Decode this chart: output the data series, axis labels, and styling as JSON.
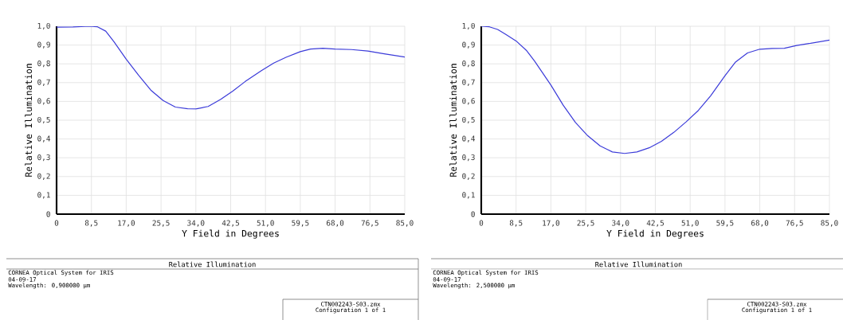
{
  "chart_data": [
    {
      "type": "line",
      "title": "Relative Illumination",
      "xlabel": "Y Field in Degrees",
      "ylabel": "Relative Illumination",
      "annotations": [
        "CORNEA Optical System for IRIS",
        "04-09-17",
        "Wavelength: 0,900000 µm",
        "CTN002243-S03.zmx",
        "Configuration 1 of 1"
      ],
      "xlim": [
        0,
        85
      ],
      "ylim": [
        0,
        1
      ],
      "xticks": [
        0,
        {
          "value": 8.5,
          "label": "8,5"
        },
        {
          "value": 17,
          "label": "17,0"
        },
        {
          "value": 25.5,
          "label": "25,5"
        },
        {
          "value": 34,
          "label": "34,0"
        },
        {
          "value": 42.5,
          "label": "42,5"
        },
        {
          "value": 51,
          "label": "51,0"
        },
        {
          "value": 59.5,
          "label": "59,5"
        },
        {
          "value": 68,
          "label": "68,0"
        },
        {
          "value": 76.5,
          "label": "76,5"
        },
        {
          "value": 85,
          "label": "85,0"
        }
      ],
      "yticks": [
        0,
        {
          "value": 0.1,
          "label": "0,1"
        },
        {
          "value": 0.2,
          "label": "0,2"
        },
        {
          "value": 0.3,
          "label": "0,3"
        },
        {
          "value": 0.4,
          "label": "0,4"
        },
        {
          "value": 0.5,
          "label": "0,5"
        },
        {
          "value": 0.6,
          "label": "0,6"
        },
        {
          "value": 0.7,
          "label": "0,7"
        },
        {
          "value": 0.8,
          "label": "0,8"
        },
        {
          "value": 0.9,
          "label": "0,9"
        },
        {
          "value": 1,
          "label": "1,0"
        }
      ],
      "grid": true,
      "marker": "none",
      "line_style": "solid",
      "series": [
        {
          "color": "#3b3bd9",
          "x": [
            0,
            4,
            8,
            10,
            12,
            14,
            17,
            20,
            23,
            26,
            29,
            32,
            34,
            37,
            40,
            43,
            46,
            50,
            53,
            56,
            59.5,
            62,
            65,
            68,
            72,
            76,
            80,
            85
          ],
          "values": [
            0.995,
            0.996,
            1.0,
            0.997,
            0.974,
            0.918,
            0.825,
            0.74,
            0.66,
            0.605,
            0.57,
            0.561,
            0.56,
            0.573,
            0.61,
            0.655,
            0.705,
            0.764,
            0.804,
            0.835,
            0.865,
            0.879,
            0.883,
            0.879,
            0.876,
            0.868,
            0.853,
            0.836
          ]
        }
      ]
    },
    {
      "type": "line",
      "title": "Relative Illumination",
      "xlabel": "Y Field in Degrees",
      "ylabel": "Relative Illumination",
      "annotations": [
        "CORNEA Optical System for IRIS",
        "04-09-17",
        "Wavelength: 2,500000 µm",
        "CTN002243-S03.zmx",
        "Configuration 1 of 1"
      ],
      "xlim": [
        0,
        85
      ],
      "ylim": [
        0,
        1
      ],
      "xticks": [
        0,
        {
          "value": 8.5,
          "label": "8,5"
        },
        {
          "value": 17,
          "label": "17,0"
        },
        {
          "value": 25.5,
          "label": "25,5"
        },
        {
          "value": 34,
          "label": "34,0"
        },
        {
          "value": 42.5,
          "label": "42,5"
        },
        {
          "value": 51,
          "label": "51,0"
        },
        {
          "value": 59.5,
          "label": "59,5"
        },
        {
          "value": 68,
          "label": "68,0"
        },
        {
          "value": 76.5,
          "label": "76,5"
        },
        {
          "value": 85,
          "label": "85,0"
        }
      ],
      "yticks": [
        0,
        {
          "value": 0.1,
          "label": "0,1"
        },
        {
          "value": 0.2,
          "label": "0,2"
        },
        {
          "value": 0.3,
          "label": "0,3"
        },
        {
          "value": 0.4,
          "label": "0,4"
        },
        {
          "value": 0.5,
          "label": "0,5"
        },
        {
          "value": 0.6,
          "label": "0,6"
        },
        {
          "value": 0.7,
          "label": "0,7"
        },
        {
          "value": 0.8,
          "label": "0,8"
        },
        {
          "value": 0.9,
          "label": "0,9"
        },
        {
          "value": 1,
          "label": "1,0"
        }
      ],
      "grid": true,
      "marker": "none",
      "line_style": "solid",
      "series": [
        {
          "color": "#3b3bd9",
          "x": [
            0,
            2,
            4,
            6,
            8.5,
            11,
            13,
            15,
            17,
            20,
            23,
            26,
            29,
            32,
            35,
            38,
            41,
            44,
            47,
            50,
            53,
            56,
            59.5,
            62,
            65,
            68,
            71,
            74,
            77,
            80,
            85
          ],
          "values": [
            1.0,
            0.997,
            0.983,
            0.957,
            0.922,
            0.872,
            0.815,
            0.751,
            0.687,
            0.58,
            0.488,
            0.417,
            0.363,
            0.331,
            0.323,
            0.331,
            0.353,
            0.388,
            0.435,
            0.491,
            0.552,
            0.63,
            0.737,
            0.808,
            0.858,
            0.878,
            0.882,
            0.883,
            0.898,
            0.908,
            0.926
          ]
        }
      ]
    }
  ]
}
